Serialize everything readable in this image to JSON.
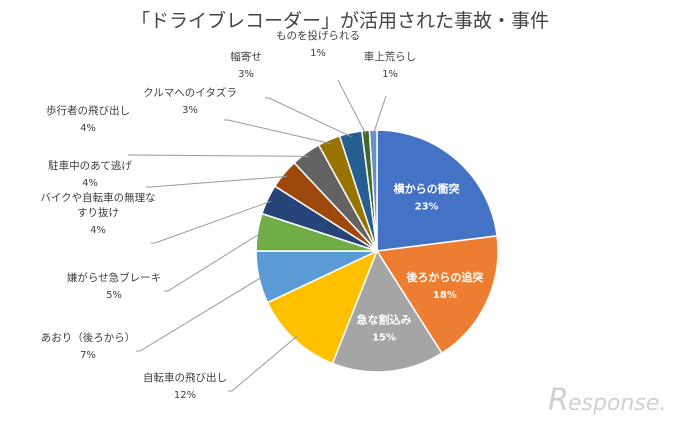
{
  "chart_data": {
    "type": "pie",
    "title": "「ドライブレコーダー」が活用された事故・事件",
    "start_category": "横からの衝突",
    "direction": "clockwise",
    "categories": [
      "横からの衝突",
      "後ろからの追突",
      "急な割込み",
      "自転車の飛び出し",
      "あおり（後ろから）",
      "嫌がらせ急ブレーキ",
      "バイクや自転車の無理なすり抜け",
      "駐車中のあて逃げ",
      "歩行者の飛び出し",
      "クルマへのイタズラ",
      "幅寄せ",
      "ものを投げられる",
      "車上荒らし"
    ],
    "values": [
      23,
      18,
      15,
      12,
      7,
      5,
      4,
      4,
      4,
      3,
      3,
      1,
      1
    ],
    "value_labels": [
      "23%",
      "18%",
      "15%",
      "12%",
      "7%",
      "5%",
      "4%",
      "4%",
      "4%",
      "3%",
      "3%",
      "1%",
      "1%"
    ],
    "colors": [
      "#4472c4",
      "#ed7d31",
      "#a5a5a5",
      "#ffc000",
      "#5b9bd5",
      "#70ad47",
      "#264478",
      "#9e480e",
      "#636363",
      "#997300",
      "#255e91",
      "#43682b",
      "#698ed0"
    ],
    "label_lines": [
      [
        "横からの衝突"
      ],
      [
        "後ろからの追突"
      ],
      [
        "急な割込み"
      ],
      [
        "自転車の飛び出し"
      ],
      [
        "あおり（後ろから）"
      ],
      [
        "嫌がらせ急ブレーキ"
      ],
      [
        "バイクや自転車の無理な",
        "すり抜け"
      ],
      [
        "駐車中のあて逃げ"
      ],
      [
        "歩行者の飛び出し"
      ],
      [
        "クルマへのイタズラ"
      ],
      [
        "幅寄せ"
      ],
      [
        "ものを投げられる"
      ],
      [
        "車上荒らし"
      ]
    ]
  },
  "watermark": {
    "text": "esponse.",
    "mark": "R"
  }
}
